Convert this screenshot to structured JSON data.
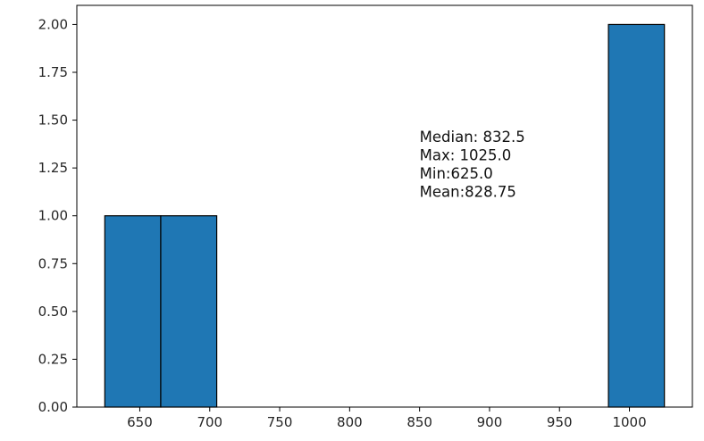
{
  "chart_data": {
    "type": "bar",
    "title": "",
    "xlabel": "",
    "ylabel": "",
    "bins": [
      {
        "x0": 625,
        "x1": 665,
        "value": 1
      },
      {
        "x0": 665,
        "x1": 705,
        "value": 1
      },
      {
        "x0": 705,
        "x1": 745,
        "value": 0
      },
      {
        "x0": 745,
        "x1": 785,
        "value": 0
      },
      {
        "x0": 785,
        "x1": 825,
        "value": 0
      },
      {
        "x0": 825,
        "x1": 865,
        "value": 0
      },
      {
        "x0": 865,
        "x1": 905,
        "value": 0
      },
      {
        "x0": 905,
        "x1": 945,
        "value": 0
      },
      {
        "x0": 945,
        "x1": 985,
        "value": 0
      },
      {
        "x0": 985,
        "x1": 1025,
        "value": 2
      }
    ],
    "xlim": [
      605,
      1045
    ],
    "ylim": [
      0,
      2.1
    ],
    "x_ticks": [
      650,
      700,
      750,
      800,
      850,
      900,
      950,
      1000
    ],
    "x_tick_labels": [
      "650",
      "700",
      "750",
      "800",
      "850",
      "900",
      "950",
      "1000"
    ],
    "y_ticks": [
      0,
      0.25,
      0.5,
      0.75,
      1.0,
      1.25,
      1.5,
      1.75,
      2.0
    ],
    "y_tick_labels": [
      "0.00",
      "0.25",
      "0.50",
      "0.75",
      "1.00",
      "1.25",
      "1.50",
      "1.75",
      "2.00"
    ],
    "bar_color": "#1f77b4",
    "edge_color": "#000000",
    "grid": false,
    "annotation": {
      "x": 850,
      "y": 1.1,
      "lines": [
        "Median: 832.5",
        "Max: 1025.0",
        "Min:625.0",
        "Mean:828.75"
      ]
    }
  }
}
